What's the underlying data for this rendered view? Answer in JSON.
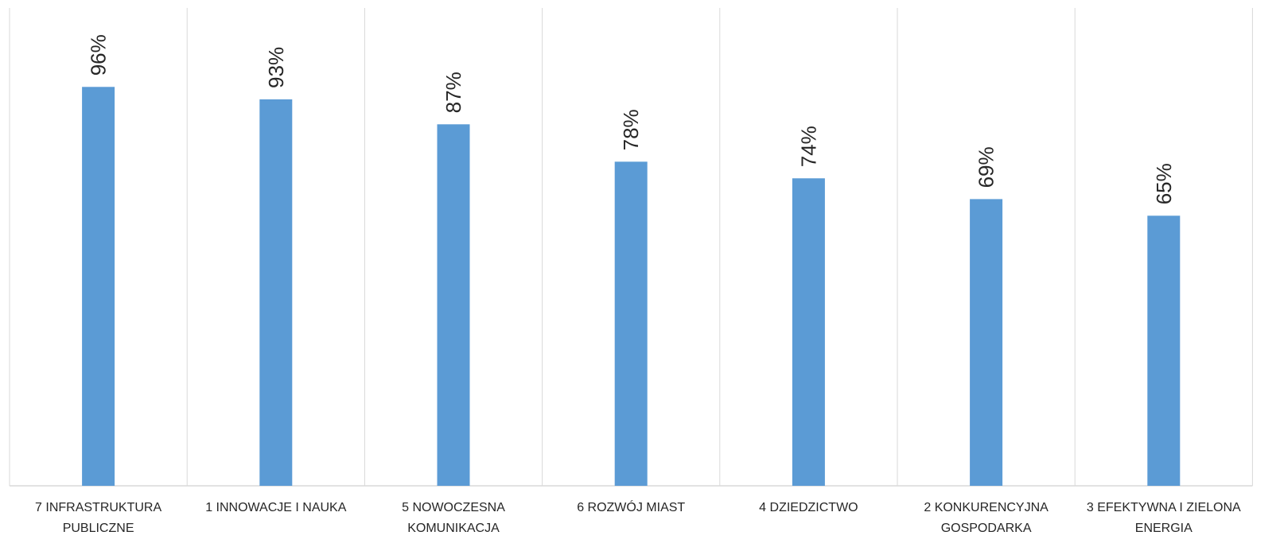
{
  "chart_data": {
    "type": "bar",
    "title": "",
    "xlabel": "",
    "ylabel": "",
    "ylim": [
      0,
      1.15
    ],
    "grid": "vertical category separators",
    "legend": "none",
    "bar_color": "#5b9bd5",
    "categories": [
      [
        "7 INFRASTRUKTURA",
        "PUBLICZNE"
      ],
      [
        "1 INNOWACJE I NAUKA"
      ],
      [
        "5 NOWOCZESNA",
        "KOMUNIKACJA"
      ],
      [
        "6 ROZWÓJ  MIAST"
      ],
      [
        "4 DZIEDZICTWO"
      ],
      [
        "2 KONKURENCYJNA",
        "GOSPODARKA"
      ],
      [
        "3 EFEKTYWNA I ZIELONA",
        "ENERGIA"
      ]
    ],
    "values": [
      0.96,
      0.93,
      0.87,
      0.78,
      0.74,
      0.69,
      0.65
    ],
    "data_labels": [
      "96%",
      "93%",
      "87%",
      "78%",
      "74%",
      "69%",
      "65%"
    ]
  }
}
